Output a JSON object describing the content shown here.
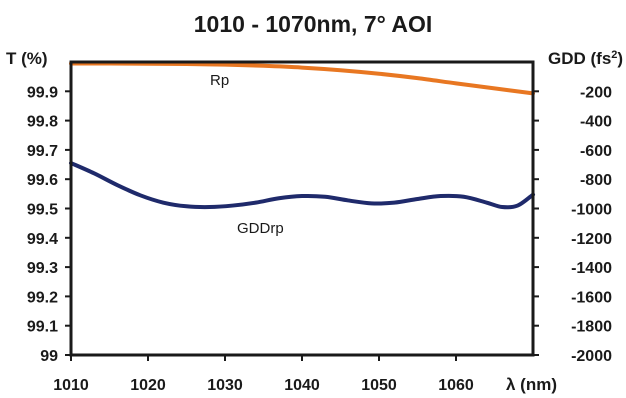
{
  "chart_data": {
    "type": "line",
    "title": "1010 - 1070nm, 7° AOI",
    "xlabel": "λ (nm)",
    "ylabel_left": "T (%)",
    "ylabel_right_base": "GDD (fs",
    "ylabel_right_exp": "2",
    "ylabel_right_close": ")",
    "xlim": [
      1010,
      1070
    ],
    "ylim_left": [
      99.0,
      100.0
    ],
    "ylim_right": [
      -2000,
      0
    ],
    "x_ticks": [
      "1010",
      "1020",
      "1030",
      "1040",
      "1050",
      "1060"
    ],
    "x_tick_values": [
      1010,
      1020,
      1030,
      1040,
      1050,
      1060
    ],
    "y_left_ticks": [
      "99",
      "99.1",
      "99.2",
      "99.3",
      "99.4",
      "99.5",
      "99.6",
      "99.7",
      "99.8",
      "99.9"
    ],
    "y_left_tick_values": [
      99.0,
      99.1,
      99.2,
      99.3,
      99.4,
      99.5,
      99.6,
      99.7,
      99.8,
      99.9
    ],
    "y_right_ticks": [
      "-200",
      "-400",
      "-600",
      "-800",
      "-1000",
      "-1200",
      "-1400",
      "-1600",
      "-1800",
      "-2000"
    ],
    "y_right_tick_values": [
      -200,
      -400,
      -600,
      -800,
      -1000,
      -1200,
      -1400,
      -1600,
      -1800,
      -2000
    ],
    "grid": false,
    "series": [
      {
        "name": "Rp",
        "axis": "left",
        "color": "#e87722",
        "x": [
          1010,
          1015,
          1020,
          1025,
          1030,
          1035,
          1040,
          1045,
          1050,
          1055,
          1060,
          1065,
          1070
        ],
        "y": [
          99.995,
          99.995,
          99.994,
          99.993,
          99.991,
          99.987,
          99.981,
          99.972,
          99.96,
          99.945,
          99.927,
          99.91,
          99.893
        ]
      },
      {
        "name": "GDDrp",
        "axis": "right",
        "color": "#1f2a6b",
        "x": [
          1010,
          1013,
          1016,
          1019,
          1022,
          1025,
          1028,
          1031,
          1034,
          1037,
          1040,
          1043,
          1046,
          1049,
          1052,
          1055,
          1058,
          1061,
          1064,
          1066,
          1068,
          1070
        ],
        "y": [
          -690,
          -760,
          -840,
          -910,
          -960,
          -985,
          -990,
          -980,
          -960,
          -930,
          -915,
          -920,
          -945,
          -965,
          -960,
          -935,
          -915,
          -920,
          -960,
          -990,
          -980,
          -905
        ]
      }
    ]
  }
}
